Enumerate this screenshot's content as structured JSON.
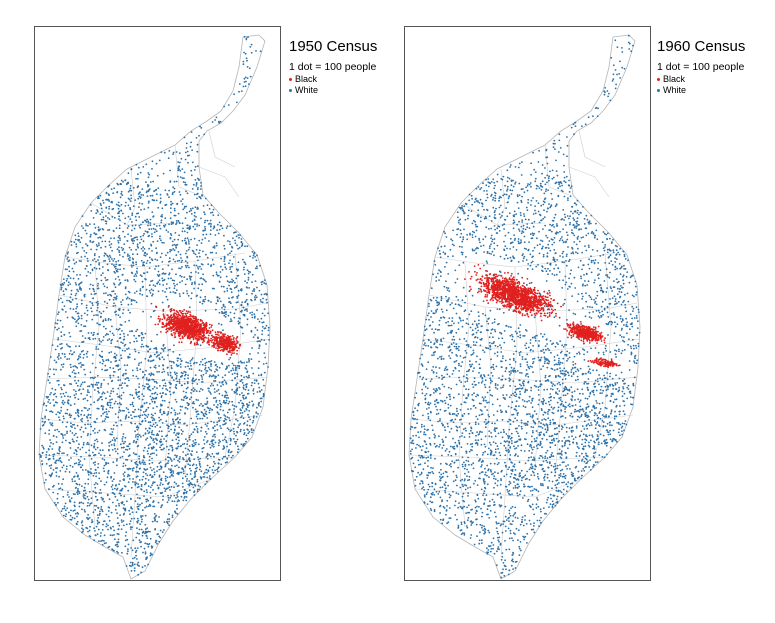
{
  "colors": {
    "black": "#e0211f",
    "white": "#2e72a8",
    "boundary": "#b5b5b5"
  },
  "maps": [
    {
      "title": "1950 Census",
      "subtitle": "1 dot = 100 people",
      "legend": [
        {
          "label": "Black",
          "color": "#e0211f"
        },
        {
          "label": "White",
          "color": "#2e72a8"
        }
      ],
      "people_per_dot": 100
    },
    {
      "title": "1960 Census",
      "subtitle": "1 dot = 100 people",
      "legend": [
        {
          "label": "Black",
          "color": "#e0211f"
        },
        {
          "label": "White",
          "color": "#2e72a8"
        }
      ],
      "people_per_dot": 100
    }
  ]
}
